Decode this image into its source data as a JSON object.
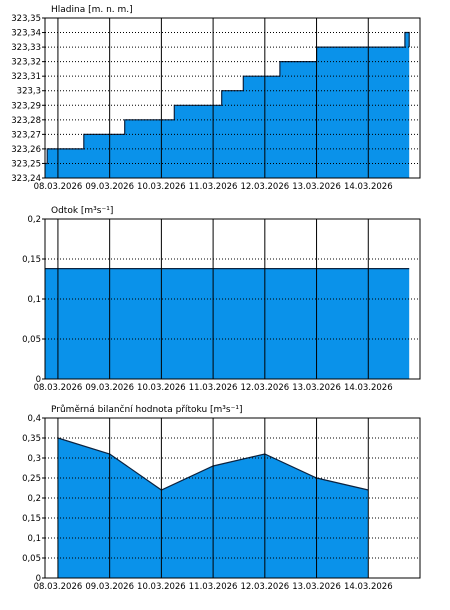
{
  "chart_data": [
    {
      "type": "area",
      "title": "Hladina [m. n. m.]",
      "x_labels": [
        "08.03.2026",
        "09.03.2026",
        "10.03.2026",
        "11.03.2026",
        "12.03.2026",
        "13.03.2026",
        "14.03.2026"
      ],
      "y_tick_labels": [
        "323,24",
        "323,25",
        "323,26",
        "323,27",
        "323,28",
        "323,29",
        "323,3",
        "323,31",
        "323,32",
        "323,33",
        "323,34",
        "323,35"
      ],
      "ylim": [
        323.24,
        323.35
      ],
      "grid": "vertical solid lines at day boundaries, dotted horizontal lines",
      "series": [
        {
          "step": true,
          "x": [
            "07.03.2026 18:00",
            "07.03.2026 19:00",
            "08.03.2026 12:00",
            "09.03.2026 07:00",
            "10.03.2026 06:00",
            "11.03.2026 04:00",
            "11.03.2026 14:00",
            "12.03.2026 07:00",
            "13.03.2026 00:00",
            "14.03.2026 14:00",
            "14.03.2026 17:00",
            "14.03.2026 19:00"
          ],
          "values": [
            323.25,
            323.26,
            323.27,
            323.28,
            323.29,
            323.3,
            323.31,
            323.32,
            323.33,
            323.33,
            323.34,
            323.33
          ]
        }
      ]
    },
    {
      "type": "area",
      "title": "Odtok [m³s⁻¹]",
      "x_labels": [
        "08.03.2026",
        "09.03.2026",
        "10.03.2026",
        "11.03.2026",
        "12.03.2026",
        "13.03.2026",
        "14.03.2026"
      ],
      "y_tick_labels": [
        "0",
        "0,05",
        "0,1",
        "0,15",
        "0,2"
      ],
      "ylim": [
        0,
        0.2
      ],
      "grid": "vertical solid lines at day boundaries, dotted horizontal lines",
      "series": [
        {
          "x": [
            "07.03.2026 18:00",
            "14.03.2026 19:00"
          ],
          "values": [
            0.138,
            0.138
          ]
        }
      ]
    },
    {
      "type": "area",
      "title": "Průměrná bilanční hodnota přítoku [m³s⁻¹]",
      "x_labels": [
        "08.03.2026",
        "09.03.2026",
        "10.03.2026",
        "11.03.2026",
        "12.03.2026",
        "13.03.2026",
        "14.03.2026"
      ],
      "y_tick_labels": [
        "0",
        "0,05",
        "0,1",
        "0,15",
        "0,2",
        "0,25",
        "0,3",
        "0,35",
        "0,4"
      ],
      "ylim": [
        0,
        0.4
      ],
      "grid": "vertical solid lines at day boundaries, dotted horizontal lines",
      "series": [
        {
          "x": [
            "08.03.2026 00:00",
            "09.03.2026 00:00",
            "10.03.2026 00:00",
            "11.03.2026 00:00",
            "12.03.2026 00:00",
            "13.03.2026 00:00",
            "14.03.2026 00:00"
          ],
          "values": [
            0.35,
            0.31,
            0.22,
            0.28,
            0.31,
            0.25,
            0.22
          ]
        }
      ]
    }
  ]
}
